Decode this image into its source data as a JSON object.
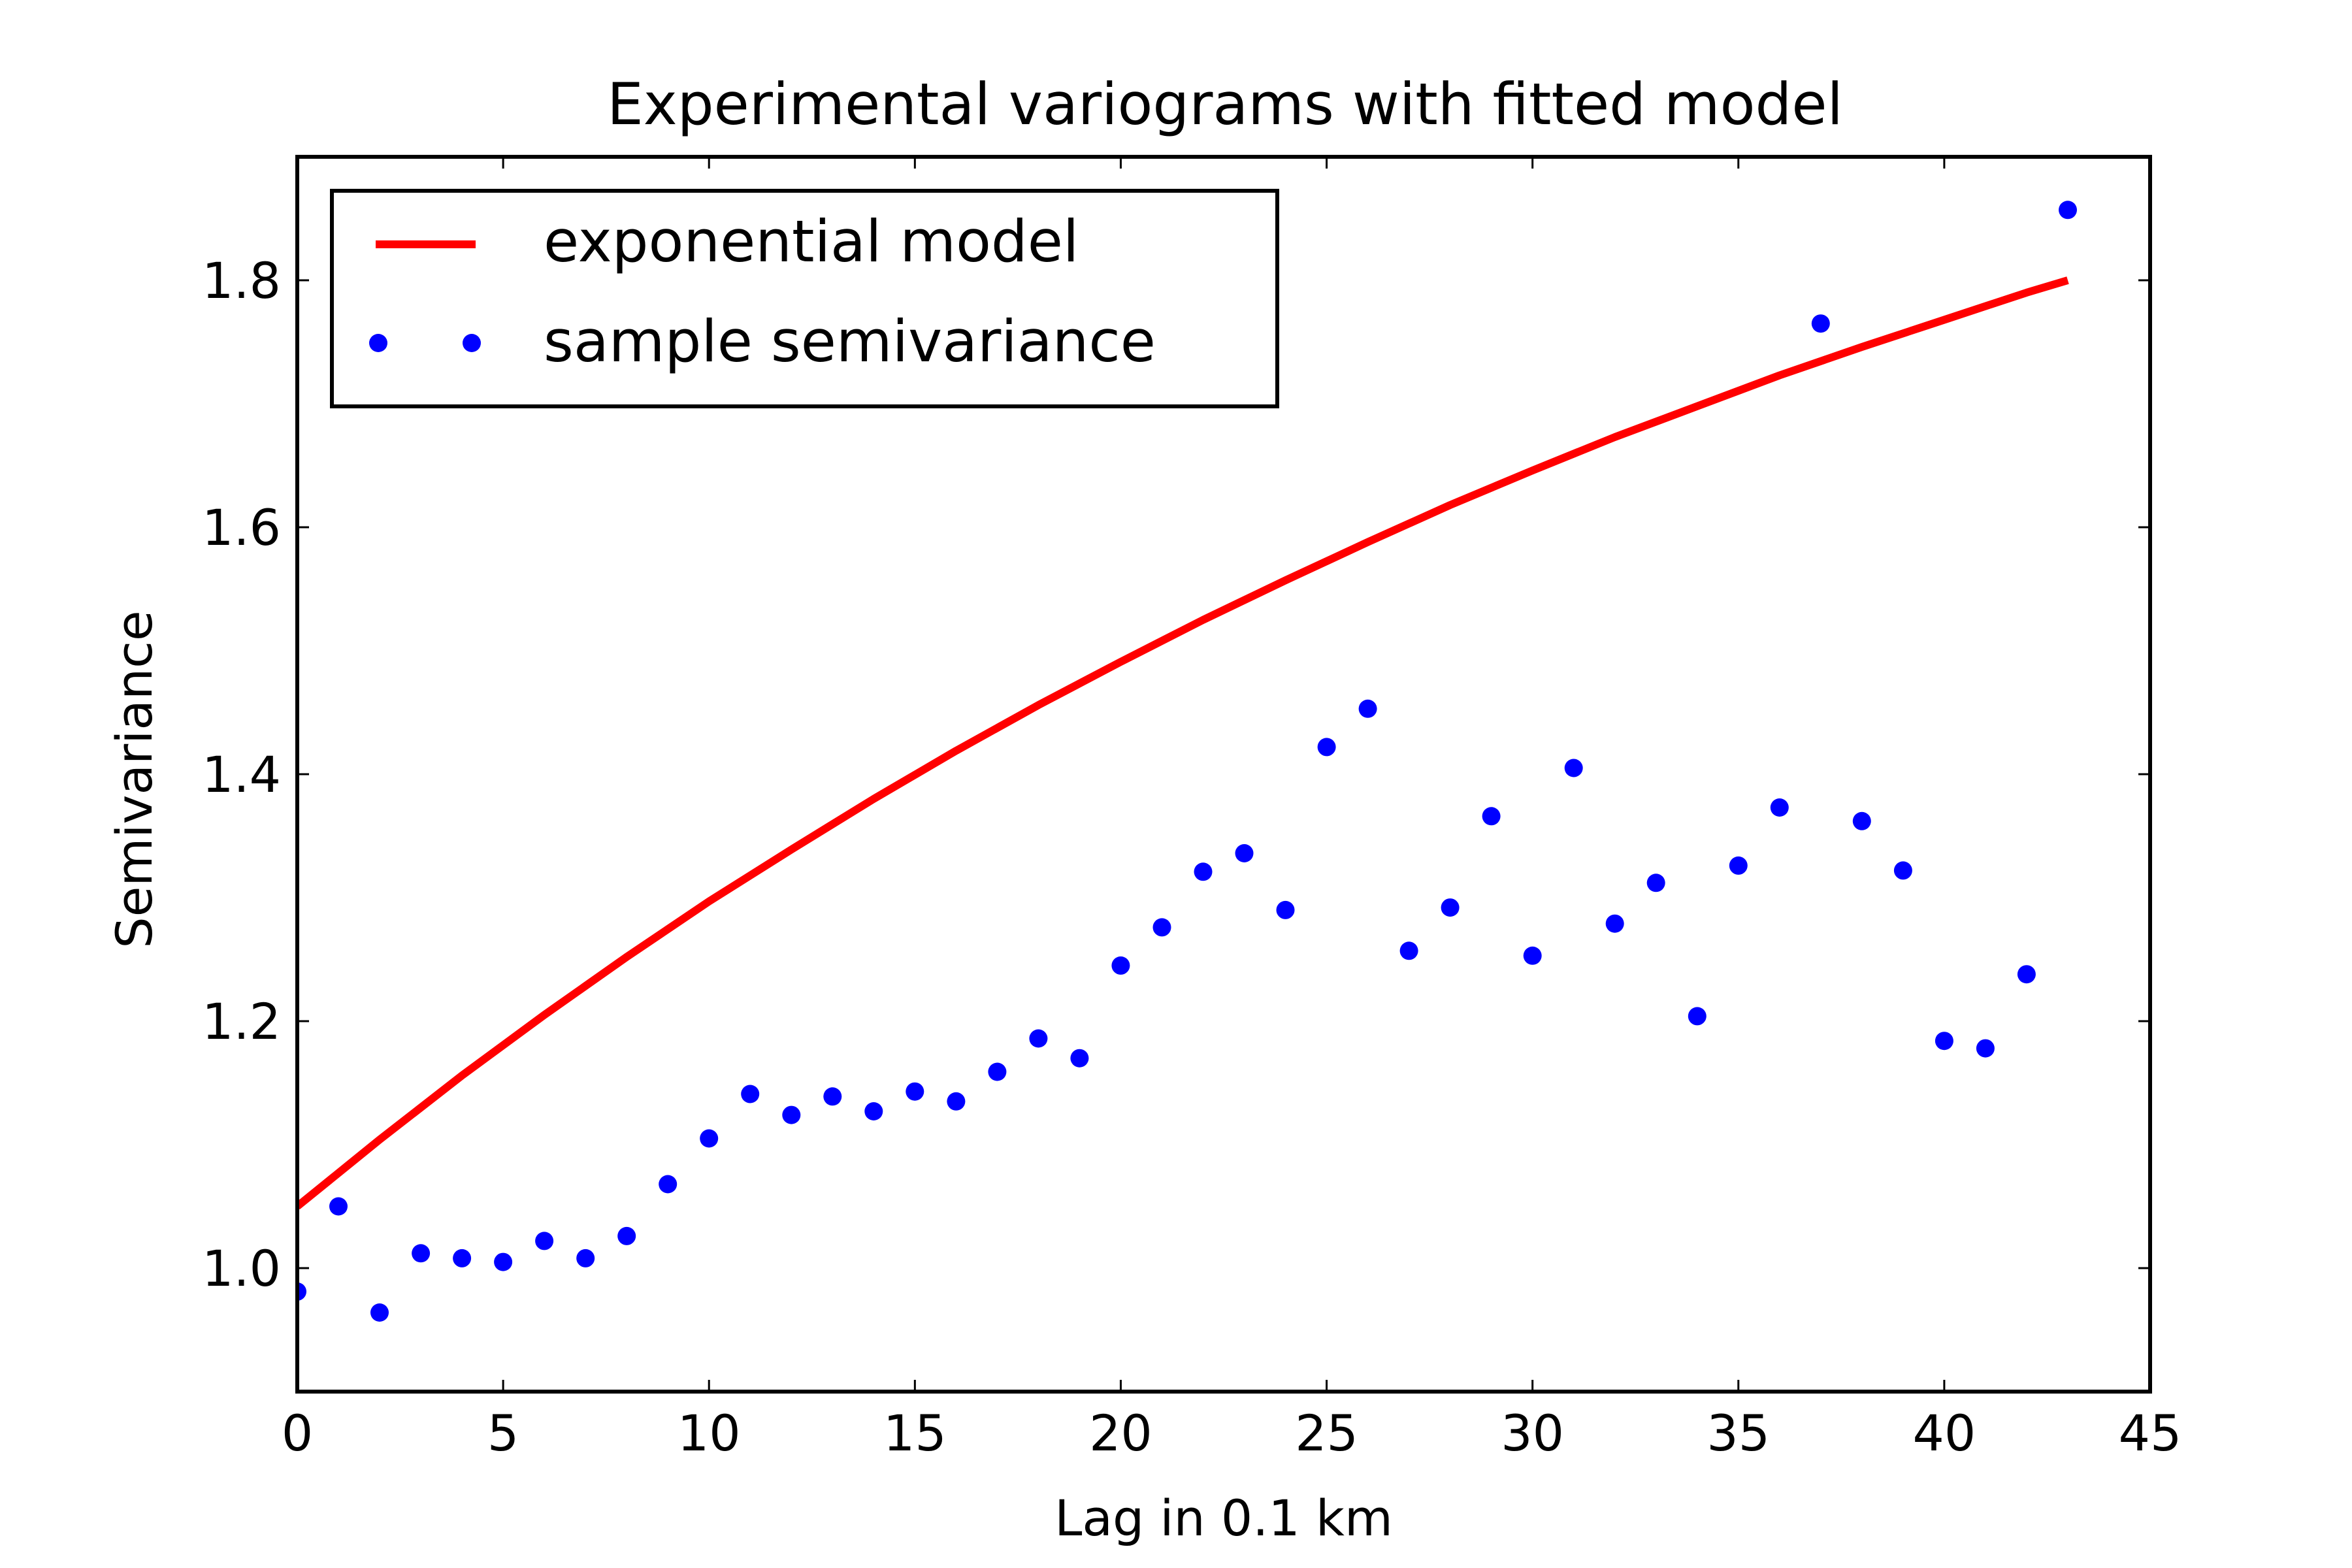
{
  "chart_data": {
    "type": "scatter",
    "title": "Experimental variograms with fitted model",
    "xlabel": "Lag in 0.1 km",
    "ylabel": "Semivariance",
    "xlim": [
      0,
      45
    ],
    "ylim": [
      0.9,
      1.9
    ],
    "xticks": [
      "0",
      "5",
      "10",
      "15",
      "20",
      "25",
      "30",
      "35",
      "40",
      "45"
    ],
    "yticks": [
      "1.0",
      "1.2",
      "1.4",
      "1.6",
      "1.8"
    ],
    "grid": false,
    "legend_position": "upper-left",
    "colors": {
      "model": "#ff0000",
      "samples": "#0000ff"
    },
    "series": [
      {
        "name": "exponential model",
        "kind": "line",
        "x": [
          0,
          2,
          4,
          6,
          8,
          10,
          12,
          14,
          16,
          18,
          20,
          22,
          24,
          26,
          28,
          30,
          32,
          34,
          36,
          38,
          40,
          42,
          43
        ],
        "y": [
          1.05,
          1.104,
          1.156,
          1.205,
          1.252,
          1.297,
          1.339,
          1.38,
          1.419,
          1.456,
          1.491,
          1.525,
          1.557,
          1.588,
          1.618,
          1.646,
          1.673,
          1.698,
          1.723,
          1.746,
          1.768,
          1.79,
          1.8
        ]
      },
      {
        "name": "sample semivariance",
        "kind": "points",
        "x": [
          0,
          1,
          2,
          3,
          4,
          5,
          6,
          7,
          8,
          9,
          10,
          11,
          12,
          13,
          14,
          15,
          16,
          17,
          18,
          19,
          20,
          21,
          22,
          23,
          24,
          25,
          26,
          27,
          28,
          29,
          30,
          31,
          32,
          33,
          34,
          35,
          36,
          37,
          38,
          39,
          40,
          41,
          42,
          43
        ],
        "y": [
          0.981,
          1.05,
          0.964,
          1.012,
          1.008,
          1.005,
          1.022,
          1.008,
          1.026,
          1.068,
          1.105,
          1.141,
          1.124,
          1.139,
          1.127,
          1.143,
          1.135,
          1.159,
          1.186,
          1.17,
          1.245,
          1.276,
          1.321,
          1.336,
          1.29,
          1.422,
          1.453,
          1.257,
          1.292,
          1.366,
          1.253,
          1.405,
          1.279,
          1.312,
          1.204,
          1.326,
          1.373,
          1.765,
          1.362,
          1.322,
          1.184,
          1.178,
          1.238,
          1.857
        ]
      }
    ]
  }
}
